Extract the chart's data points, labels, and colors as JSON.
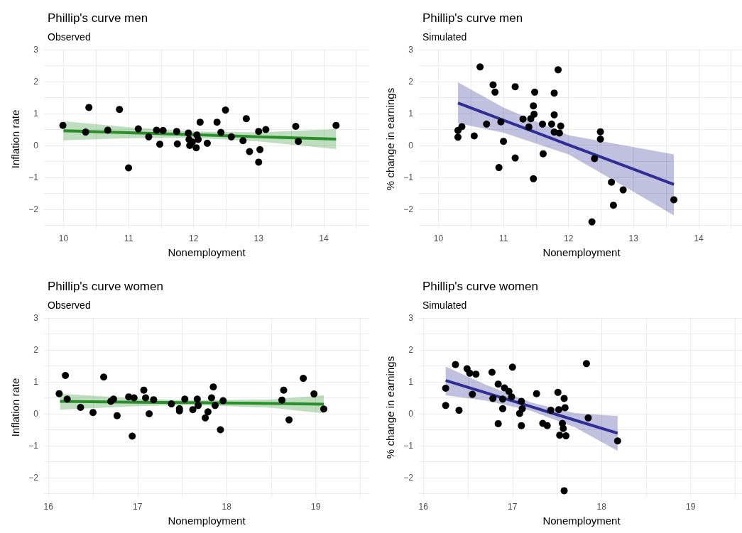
{
  "chart_data": [
    {
      "type": "scatter",
      "title": "Phillip's curve men",
      "subtitle": "Observed",
      "xlabel": "Nonemployment",
      "ylabel": "Inflation rate",
      "xlim": [
        9.7,
        14.7
      ],
      "xticks": [
        10,
        {
          "value": 10.5,
          "label": null
        },
        11,
        {
          "value": 11.5,
          "label": null
        },
        12,
        {
          "value": 12.5,
          "label": null
        },
        13,
        {
          "value": 13.5,
          "label": null
        },
        14,
        {
          "value": 14.5,
          "label": null
        }
      ],
      "ylim": [
        -2.6,
        3
      ],
      "yticks": [
        {
          "value": -2.5,
          "label": null
        },
        {
          "value": -2,
          "label": "−2"
        },
        {
          "value": -1.5,
          "label": null
        },
        {
          "value": -1,
          "label": "−1"
        },
        {
          "value": -0.5,
          "label": null
        },
        0,
        {
          "value": 0.5,
          "label": null
        },
        1,
        {
          "value": 1.5,
          "label": null
        },
        2,
        {
          "value": 2.5,
          "label": null
        },
        3
      ],
      "grid": true,
      "series": [
        {
          "type": "line",
          "color": "#2a8f2a",
          "x": [
            10,
            11,
            12,
            13,
            14.19
          ],
          "values": [
            0.46,
            0.4,
            0.34,
            0.27,
            0.2
          ],
          "lower": [
            0.16,
            0.23,
            0.24,
            0.13,
            -0.11
          ],
          "upper": [
            0.76,
            0.57,
            0.44,
            0.41,
            0.51
          ]
        },
        {
          "type": "scatter",
          "color": "#000000",
          "x": [
            9.99,
            10.34,
            10.39,
            10.68,
            10.86,
            11.0,
            11.15,
            11.31,
            11.43,
            11.48,
            11.53,
            11.74,
            11.75,
            11.92,
            11.93,
            11.94,
            11.98,
            12.04,
            12.05,
            12.07,
            12.1,
            12.21,
            12.36,
            12.42,
            12.49,
            12.58,
            12.76,
            12.81,
            12.86,
            13.0,
            13.0,
            13.02,
            13.11,
            13.57,
            13.61,
            14.19
          ],
          "values": [
            0.63,
            0.42,
            1.19,
            0.48,
            1.13,
            -0.7,
            0.52,
            0.27,
            0.48,
            0.04,
            0.47,
            0.44,
            0.05,
            0.39,
            0.19,
            0.0,
            0.11,
            -0.07,
            0.33,
            0.19,
            0.73,
            0.07,
            0.73,
            0.41,
            1.11,
            0.27,
            0.15,
            0.84,
            -0.19,
            0.44,
            -0.52,
            -0.13,
            0.5,
            0.6,
            0.13,
            0.63
          ]
        }
      ]
    },
    {
      "type": "scatter",
      "title": "Phillip's curve men",
      "subtitle": "Simulated",
      "xlabel": "Nonemployment",
      "ylabel": "% change in earnings",
      "xlim": [
        9.7,
        14.7
      ],
      "xticks": [
        10,
        {
          "value": 10.5,
          "label": null
        },
        11,
        {
          "value": 11.5,
          "label": null
        },
        12,
        {
          "value": 12.5,
          "label": null
        },
        13,
        {
          "value": 13.5,
          "label": null
        },
        14,
        {
          "value": 14.5,
          "label": null
        }
      ],
      "ylim": [
        -2.6,
        3
      ],
      "yticks": [
        {
          "value": -2.5,
          "label": null
        },
        {
          "value": -2,
          "label": "−2"
        },
        {
          "value": -1.5,
          "label": null
        },
        {
          "value": -1,
          "label": "−1"
        },
        {
          "value": -0.5,
          "label": null
        },
        0,
        {
          "value": 0.5,
          "label": null
        },
        1,
        {
          "value": 1.5,
          "label": null
        },
        2,
        {
          "value": 2.5,
          "label": null
        },
        3
      ],
      "grid": true,
      "series": [
        {
          "type": "line",
          "color": "#2e2e96",
          "x": [
            10.3,
            11,
            12,
            13,
            13.62
          ],
          "values": [
            1.33,
            0.79,
            0.02,
            -0.74,
            -1.22
          ],
          "lower": [
            0.7,
            0.4,
            -0.28,
            -1.45,
            -2.19
          ],
          "upper": [
            1.98,
            1.19,
            0.32,
            -0.05,
            -0.28
          ]
        },
        {
          "type": "scatter",
          "color": "#000000",
          "x": [
            10.3,
            10.3,
            10.36,
            10.55,
            10.64,
            10.74,
            10.84,
            10.87,
            10.93,
            10.96,
            11.0,
            11.18,
            11.18,
            11.3,
            11.39,
            11.42,
            11.46,
            11.46,
            11.47,
            11.48,
            11.6,
            11.61,
            11.74,
            11.78,
            11.78,
            11.78,
            11.84,
            11.86,
            11.88,
            12.36,
            12.4,
            12.49,
            12.49,
            12.66,
            12.69,
            12.84,
            13.62
          ],
          "values": [
            0.26,
            0.47,
            0.59,
            0.3,
            2.46,
            0.67,
            1.9,
            1.67,
            -0.69,
            0.74,
            0.13,
            1.84,
            -0.39,
            0.83,
            0.58,
            0.84,
            1.24,
            -1.04,
            0.98,
            1.67,
            0.67,
            -0.26,
            0.67,
            1.64,
            0.96,
            0.42,
            2.37,
            0.39,
            0.61,
            -2.39,
            -0.41,
            0.43,
            0.2,
            -1.15,
            -1.87,
            -1.39,
            -1.7
          ]
        }
      ]
    },
    {
      "type": "scatter",
      "title": "Phillip's curve women",
      "subtitle": "Observed",
      "xlabel": "Nonemployment",
      "ylabel": "Inflation rate",
      "xlim": [
        15.95,
        19.6
      ],
      "xticks": [
        16,
        {
          "value": 16.5,
          "label": null
        },
        17,
        {
          "value": 17.5,
          "label": null
        },
        18,
        {
          "value": 18.5,
          "label": null
        },
        19,
        {
          "value": 19.5,
          "label": null
        }
      ],
      "ylim": [
        -2.6,
        3
      ],
      "yticks": [
        {
          "value": -2.5,
          "label": null
        },
        {
          "value": -2,
          "label": "−2"
        },
        {
          "value": -1.5,
          "label": null
        },
        {
          "value": -1,
          "label": "−1"
        },
        {
          "value": -0.5,
          "label": null
        },
        0,
        {
          "value": 0.5,
          "label": null
        },
        1,
        {
          "value": 1.5,
          "label": null
        },
        2,
        {
          "value": 2.5,
          "label": null
        },
        3
      ],
      "grid": true,
      "series": [
        {
          "type": "line",
          "color": "#2a8f2a",
          "x": [
            16.13,
            17,
            17.6,
            18.5,
            19.09
          ],
          "values": [
            0.39,
            0.36,
            0.35,
            0.32,
            0.3
          ],
          "lower": [
            0.13,
            0.24,
            0.28,
            0.19,
            0.01
          ],
          "upper": [
            0.63,
            0.48,
            0.42,
            0.45,
            0.58
          ]
        },
        {
          "type": "scatter",
          "color": "#000000",
          "x": [
            16.12,
            16.19,
            16.21,
            16.36,
            16.5,
            16.62,
            16.7,
            16.73,
            16.77,
            16.9,
            16.94,
            16.96,
            17.07,
            17.09,
            17.13,
            17.18,
            17.38,
            17.47,
            17.47,
            17.53,
            17.62,
            17.67,
            17.68,
            17.76,
            17.79,
            17.83,
            17.85,
            17.87,
            17.93,
            17.96,
            18.62,
            18.64,
            18.7,
            18.86,
            18.98,
            19.09
          ],
          "values": [
            0.63,
            1.2,
            0.46,
            0.2,
            0.04,
            1.15,
            0.39,
            0.46,
            -0.06,
            0.53,
            -0.7,
            0.5,
            0.74,
            0.5,
            0.0,
            0.44,
            0.31,
            0.16,
            0.09,
            0.46,
            0.13,
            0.46,
            0.26,
            -0.13,
            0.06,
            0.5,
            0.84,
            0.26,
            -0.5,
            0.41,
            0.43,
            0.74,
            -0.19,
            1.11,
            0.62,
            0.15
          ]
        }
      ]
    },
    {
      "type": "scatter",
      "title": "Phillip's curve women",
      "subtitle": "Simulated",
      "xlabel": "Nonemployment",
      "ylabel": "% change in earnings",
      "xlim": [
        15.95,
        19.6
      ],
      "xticks": [
        16,
        {
          "value": 16.5,
          "label": null
        },
        17,
        {
          "value": 17.5,
          "label": null
        },
        18,
        {
          "value": 18.5,
          "label": null
        },
        19,
        {
          "value": 19.5,
          "label": null
        }
      ],
      "ylim": [
        -2.6,
        3
      ],
      "yticks": [
        {
          "value": -2.5,
          "label": null
        },
        {
          "value": -2,
          "label": "−2"
        },
        {
          "value": -1.5,
          "label": null
        },
        {
          "value": -1,
          "label": "−1"
        },
        {
          "value": -0.5,
          "label": null
        },
        0,
        {
          "value": 0.5,
          "label": null
        },
        1,
        {
          "value": 1.5,
          "label": null
        },
        2,
        {
          "value": 2.5,
          "label": null
        },
        3
      ],
      "grid": true,
      "series": [
        {
          "type": "line",
          "color": "#2e2e96",
          "x": [
            16.25,
            16.7,
            17.2,
            17.7,
            18.18
          ],
          "values": [
            1.04,
            0.66,
            0.23,
            -0.2,
            -0.61
          ],
          "lower": [
            0.58,
            0.41,
            0.1,
            -0.42,
            -1.16
          ],
          "upper": [
            1.48,
            0.91,
            0.36,
            0.02,
            -0.07
          ]
        },
        {
          "type": "scatter",
          "color": "#000000",
          "x": [
            16.25,
            16.25,
            16.36,
            16.4,
            16.49,
            16.52,
            16.59,
            16.55,
            16.77,
            16.78,
            16.84,
            16.84,
            16.89,
            16.89,
            16.91,
            16.96,
            16.99,
            17.0,
            17.08,
            17.1,
            17.1,
            17.11,
            17.27,
            17.34,
            17.39,
            17.43,
            17.51,
            17.52,
            17.53,
            17.56,
            17.57,
            17.58,
            17.59,
            17.6,
            17.58,
            17.83,
            17.85,
            18.18
          ],
          "values": [
            0.26,
            0.8,
            1.54,
            0.11,
            1.41,
            1.27,
            1.24,
            0.61,
            1.3,
            0.48,
            0.93,
            -0.31,
            0.16,
            0.46,
            0.81,
            0.7,
            0.53,
            1.46,
            0.01,
            0.39,
            -0.37,
            0.16,
            0.63,
            -0.3,
            -0.37,
            0.11,
            0.67,
            0.13,
            -0.67,
            -0.3,
            -0.46,
            0.48,
            0.19,
            -0.69,
            -2.41,
            1.57,
            -0.13,
            -0.85
          ]
        }
      ]
    }
  ]
}
